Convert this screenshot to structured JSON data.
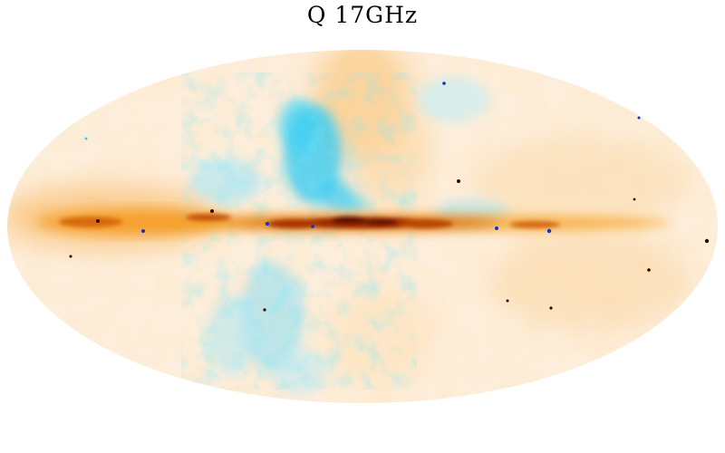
{
  "figure": {
    "title": "Q  17GHz",
    "projection": "mollweide",
    "colormap": {
      "negative_strong": "#0a2fd6",
      "negative": "#2ec8f2",
      "negative_weak": "#c9eef6",
      "neutral": "#fdf3e4",
      "positive_weak": "#fde3bd",
      "positive": "#f6a52c",
      "positive_strong": "#c5520a",
      "positive_max": "#5c0d02"
    }
  }
}
